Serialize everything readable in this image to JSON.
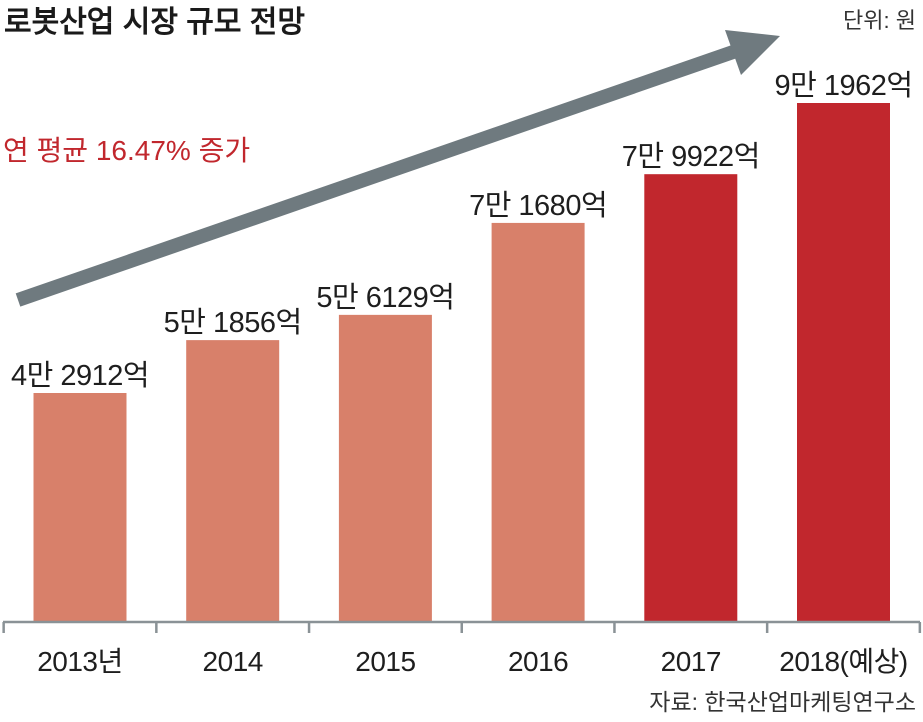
{
  "chart_data": {
    "type": "bar",
    "title": "로봇산업 시장 규모 전망",
    "unit_label": "단위: 원",
    "annotation": "연 평균 16.47% 증가",
    "annotation_color": "#c1272d",
    "arrow_color": "#6f7a7f",
    "axis_color": "#8a9296",
    "categories": [
      "2013년",
      "2014",
      "2015",
      "2016",
      "2017",
      "2018(예상)"
    ],
    "values": [
      42912,
      51856,
      56129,
      71680,
      79922,
      91962
    ],
    "data_labels": [
      "4만 2912억",
      "5만 1856억",
      "5만 6129억",
      "7만 1680억",
      "7만 9922억",
      "9만 1962억"
    ],
    "bar_colors": [
      "#d8806a",
      "#d8806a",
      "#d8806a",
      "#d8806a",
      "#c1272d",
      "#c1272d"
    ],
    "grid": false,
    "source": "자료: 한국산업마케팅연구소"
  }
}
